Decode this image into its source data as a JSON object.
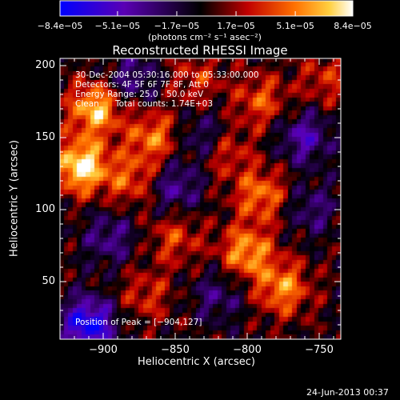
{
  "colorbar": {
    "tick_labels": [
      "−8.4e−05",
      "−5.1e−05",
      "−1.7e−05",
      "1.7e−05",
      "5.1e−05",
      "8.4e−05"
    ],
    "tick_values": [
      -8.4e-05,
      -5.1e-05,
      -1.7e-05,
      1.7e-05,
      5.1e-05,
      8.4e-05
    ],
    "range": [
      -8.4e-05,
      8.4e-05
    ],
    "units": "(photons cm⁻² s⁻¹ asec⁻²)",
    "colors": [
      "#0000ff",
      "#4b0082",
      "#000000",
      "#c00000",
      "#ff6000",
      "#ffd040",
      "#ffffff"
    ]
  },
  "chart_data": {
    "type": "heatmap",
    "title": "Reconstructed RHESSI Image",
    "xlabel": "Heliocentric X (arcsec)",
    "ylabel": "Heliocentric Y (arcsec)",
    "xlim": [
      -930,
      -735
    ],
    "ylim": [
      10,
      205
    ],
    "x_ticks": [
      -900,
      -850,
      -800,
      -750
    ],
    "x_tick_labels": [
      "−900",
      "−850",
      "−800",
      "−750"
    ],
    "y_ticks": [
      50,
      100,
      150,
      200
    ],
    "y_tick_labels": [
      "50",
      "100",
      "150",
      "200"
    ],
    "annotations": {
      "time_range": "30-Dec-2004 05:30:16.000 to 05:33:00.000",
      "detectors": "Detectors: 4F 5F 6F 7F 8F, Att 0",
      "energy_range": "Energy Range: 25.0 - 50.0 keV",
      "clean": "Clean",
      "total_counts": "Total counts: 1.74E+03",
      "peak": "Position of Peak = [−904,127]"
    },
    "peak_position": [
      -904,
      127
    ],
    "hotspots": [
      {
        "x": -915,
        "y": 130,
        "value": 8.4e-05
      },
      {
        "x": -905,
        "y": 170,
        "value": 7e-05
      },
      {
        "x": -880,
        "y": 120,
        "value": 4e-05
      },
      {
        "x": -865,
        "y": 150,
        "value": 5e-05
      },
      {
        "x": -850,
        "y": 80,
        "value": 3.5e-05
      },
      {
        "x": -835,
        "y": 190,
        "value": 3e-05
      },
      {
        "x": -815,
        "y": 140,
        "value": 3.5e-05
      },
      {
        "x": -800,
        "y": 70,
        "value": 6e-05
      },
      {
        "x": -790,
        "y": 110,
        "value": 5e-05
      },
      {
        "x": -775,
        "y": 45,
        "value": 5.5e-05
      },
      {
        "x": -790,
        "y": 175,
        "value": 4e-05
      },
      {
        "x": -870,
        "y": 40,
        "value": 3e-05
      },
      {
        "x": -745,
        "y": 190,
        "value": 3e-05
      }
    ],
    "coldspots": [
      {
        "x": -910,
        "y": 20,
        "value": -8e-05
      },
      {
        "x": -850,
        "y": 115,
        "value": -4e-05
      },
      {
        "x": -830,
        "y": 150,
        "value": -3.5e-05
      },
      {
        "x": -760,
        "y": 150,
        "value": -4.5e-05
      },
      {
        "x": -880,
        "y": 190,
        "value": -3.5e-05
      },
      {
        "x": -755,
        "y": 100,
        "value": -3e-05
      },
      {
        "x": -820,
        "y": 40,
        "value": -3e-05
      },
      {
        "x": -895,
        "y": 80,
        "value": -3.5e-05
      }
    ]
  },
  "footer": {
    "date_stamp": "24-Jun-2013 00:37"
  }
}
